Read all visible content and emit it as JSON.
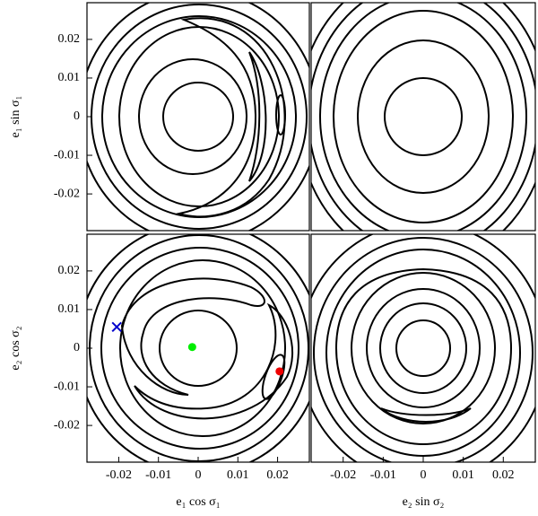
{
  "chart_data": [
    {
      "type": "contour",
      "ylabel": "e₁ sin σ₁",
      "ylim": [
        -0.0295,
        0.0295
      ],
      "yticks": [
        -0.02,
        -0.01,
        0,
        0.01,
        0.02
      ]
    },
    {
      "type": "contour"
    },
    {
      "type": "contour",
      "xlabel": "e₁ cos σ₁",
      "ylabel": "e₂ cos σ₂",
      "xlim": [
        -0.028,
        0.028
      ],
      "ylim": [
        -0.0295,
        0.0295
      ],
      "xticks": [
        -0.02,
        -0.01,
        0,
        0.01,
        0.02
      ],
      "yticks": [
        -0.02,
        -0.01,
        0,
        0.01,
        0.02
      ],
      "series": [
        {
          "color": "#0000cc",
          "marker": "x",
          "x": [
            -0.0205
          ],
          "values": [
            0.0055
          ]
        },
        {
          "color": "#00ee00",
          "marker": "dot",
          "x": [
            -0.0015
          ],
          "values": [
            0.0003
          ]
        },
        {
          "color": "#ee0000",
          "marker": "dot",
          "x": [
            0.0205
          ],
          "values": [
            -0.006
          ]
        }
      ]
    },
    {
      "type": "contour",
      "xlabel": "e₂ sin σ₂",
      "xlim": [
        -0.028,
        0.028
      ],
      "xticks": [
        -0.02,
        -0.01,
        0,
        0.01,
        0.02
      ]
    }
  ]
}
